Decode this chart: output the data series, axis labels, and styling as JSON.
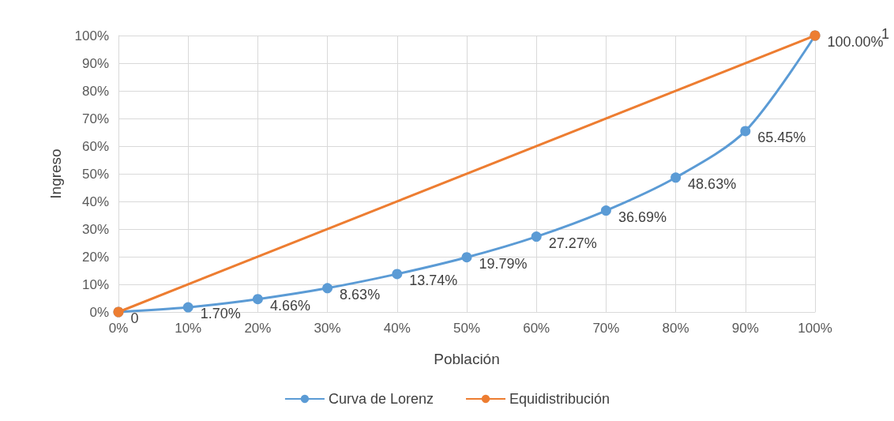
{
  "chart_data": {
    "type": "line",
    "xlabel": "Población",
    "ylabel": "Ingreso",
    "x": [
      0,
      10,
      20,
      30,
      40,
      50,
      60,
      70,
      80,
      90,
      100
    ],
    "series": [
      {
        "name": "Curva de Lorenz",
        "color": "#5b9bd5",
        "values": [
          0,
          1.7,
          4.66,
          8.63,
          13.74,
          19.79,
          27.27,
          36.69,
          48.63,
          65.45,
          100
        ],
        "value_labels": [
          "0",
          "1.70%",
          "4.66%",
          "8.63%",
          "13.74%",
          "19.79%",
          "27.27%",
          "36.69%",
          "48.63%",
          "65.45%",
          "100.00%"
        ]
      },
      {
        "name": "Equidistribución",
        "color": "#ed7d31",
        "x": [
          0,
          100
        ],
        "values": [
          0,
          100
        ]
      }
    ],
    "annotations": [
      "1"
    ],
    "xlim": [
      0,
      100
    ],
    "xticks": [
      {
        "value": 0,
        "label": "0%"
      },
      {
        "value": 10,
        "label": "10%"
      },
      {
        "value": 20,
        "label": "20%"
      },
      {
        "value": 30,
        "label": "30%"
      },
      {
        "value": 40,
        "label": "40%"
      },
      {
        "value": 50,
        "label": "50%"
      },
      {
        "value": 60,
        "label": "60%"
      },
      {
        "value": 70,
        "label": "70%"
      },
      {
        "value": 80,
        "label": "80%"
      },
      {
        "value": 90,
        "label": "90%"
      },
      {
        "value": 100,
        "label": "100%"
      }
    ],
    "ylim": [
      0,
      100
    ],
    "yticks": [
      {
        "value": 0,
        "label": "0%"
      },
      {
        "value": 10,
        "label": "10%"
      },
      {
        "value": 20,
        "label": "20%"
      },
      {
        "value": 30,
        "label": "30%"
      },
      {
        "value": 40,
        "label": "40%"
      },
      {
        "value": 50,
        "label": "50%"
      },
      {
        "value": 60,
        "label": "60%"
      },
      {
        "value": 70,
        "label": "70%"
      },
      {
        "value": 80,
        "label": "80%"
      },
      {
        "value": 90,
        "label": "90%"
      },
      {
        "value": 100,
        "label": "100%"
      }
    ],
    "grid": true,
    "legend": "bottom",
    "marker": "circle",
    "line_style": "solid"
  }
}
